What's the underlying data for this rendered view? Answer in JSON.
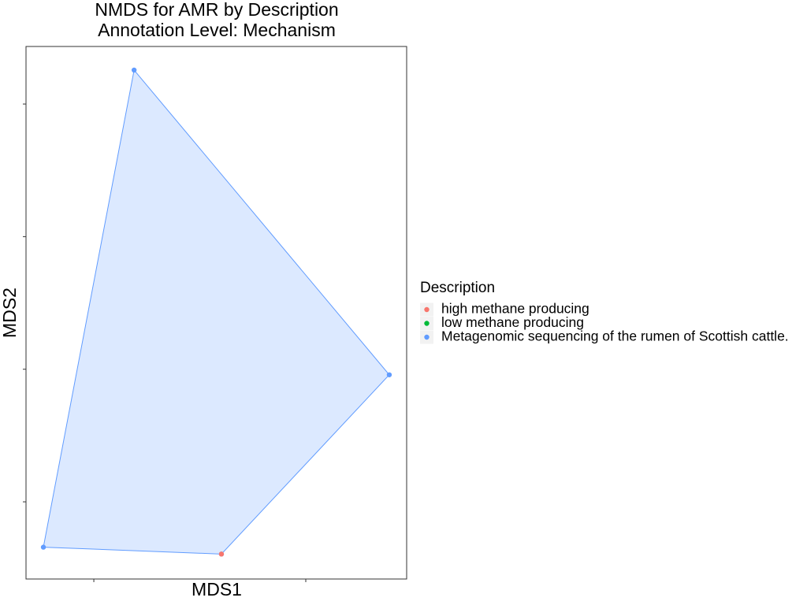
{
  "chart_data": {
    "type": "scatter",
    "title": "NMDS for AMR by Description",
    "subtitle": "Annotation Level: Mechanism",
    "x_label": "MDS1",
    "y_label": "MDS2",
    "legend_title": "Description",
    "legend": "right",
    "hull": true,
    "xlim": [
      -0.82,
      0.976
    ],
    "xticks": [
      -0.5,
      0.5
    ],
    "ylim": [
      -1.291,
      0.717
    ],
    "yticks": [
      -1,
      -0.5,
      0,
      0.5
    ],
    "series": [
      {
        "name": "high methane producing",
        "color": "#F8766D",
        "x": [
          0.102
        ],
        "values": [
          -1.197
        ]
      },
      {
        "name": "low methane producing",
        "color": "#00BA38",
        "x": [],
        "values": []
      },
      {
        "name": "Metagenomic sequencing of the rumen of Scottish cattle.",
        "color": "#619CFF",
        "x": [
          -0.31,
          0.894,
          0.102,
          -0.738
        ],
        "values": [
          0.628,
          -0.521,
          -1.197,
          -1.171
        ]
      }
    ]
  }
}
